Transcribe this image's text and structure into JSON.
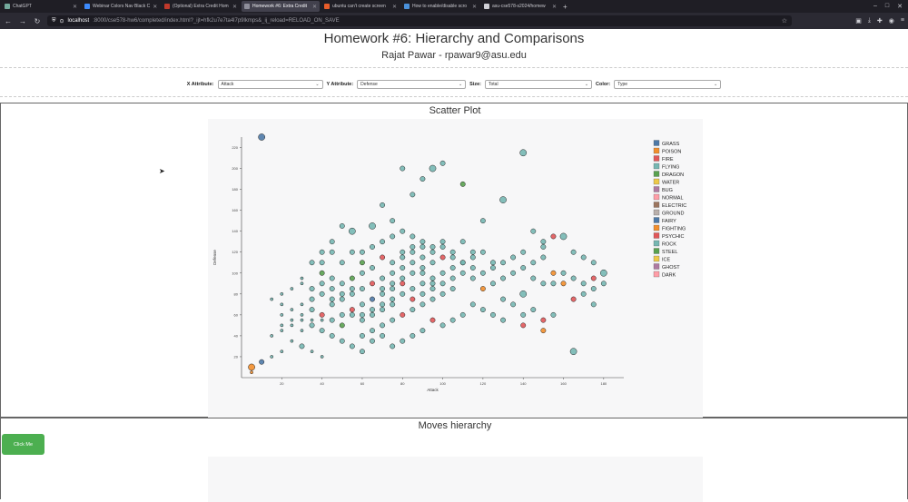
{
  "browser": {
    "tabs": [
      {
        "label": "ChatGPT",
        "color": "#74aa9c",
        "active": false
      },
      {
        "label": "Webinar Colors Nav Black C",
        "color": "#3d8bfd",
        "active": false
      },
      {
        "label": "(Optional) Extra Credit Hom",
        "color": "#c0392b",
        "active": false
      },
      {
        "label": "Homework #6: Extra Credit",
        "color": "#8e8e9a",
        "active": true
      },
      {
        "label": "ubuntu can't create screen",
        "color": "#e85d2a",
        "active": false
      },
      {
        "label": "How to enable/disable scro",
        "color": "#4a90d9",
        "active": false
      },
      {
        "label": "asu-cse578-s2024/homew",
        "color": "#d0d0d6",
        "active": false
      }
    ],
    "url_host": "localhost",
    "url_path": ":8000/cse578-hw6/completed/index.html?_ijt=hfk2u7e7ta4l7p9lkmps&_ij_reload=RELOAD_ON_SAVE"
  },
  "header": {
    "title": "Homework #6: Hierarchy and Comparisons",
    "subtitle": "Rajat Pawar - rpawar9@asu.edu"
  },
  "controls": {
    "x_label": "X Attribute:",
    "x_value": "Attack",
    "y_label": "Y Attribute:",
    "y_value": "Defense",
    "size_label": "Size:",
    "size_value": "Total",
    "color_label": "Color:",
    "color_value": "Type"
  },
  "scatter": {
    "title": "Scatter Plot"
  },
  "moves": {
    "title": "Moves hierarchy",
    "button_label": "Click Me"
  },
  "chart_data": {
    "type": "scatter",
    "xlabel": "Attack",
    "ylabel": "Defense",
    "xlim": [
      0,
      190
    ],
    "ylim": [
      0,
      230
    ],
    "xticks": [
      20,
      40,
      60,
      80,
      100,
      120,
      140,
      160,
      180
    ],
    "yticks": [
      20,
      40,
      60,
      80,
      100,
      120,
      140,
      160,
      180,
      200,
      220
    ],
    "legend_position": "right",
    "legend": [
      {
        "name": "GRASS",
        "color": "#4e79a7"
      },
      {
        "name": "POISON",
        "color": "#f28e2c"
      },
      {
        "name": "FIRE",
        "color": "#e15759"
      },
      {
        "name": "FLYING",
        "color": "#76b7b2"
      },
      {
        "name": "DRAGON",
        "color": "#59a14f"
      },
      {
        "name": "WATER",
        "color": "#edc949"
      },
      {
        "name": "BUG",
        "color": "#af7aa1"
      },
      {
        "name": "NORMAL",
        "color": "#ff9da7"
      },
      {
        "name": "ELECTRIC",
        "color": "#9c755f"
      },
      {
        "name": "GROUND",
        "color": "#bab0ab"
      },
      {
        "name": "FAIRY",
        "color": "#4e79a7"
      },
      {
        "name": "FIGHTING",
        "color": "#f28e2c"
      },
      {
        "name": "PSYCHIC",
        "color": "#e15759"
      },
      {
        "name": "ROCK",
        "color": "#76b7b2"
      },
      {
        "name": "STEEL",
        "color": "#59a14f"
      },
      {
        "name": "ICE",
        "color": "#edc949"
      },
      {
        "name": "GHOST",
        "color": "#af7aa1"
      },
      {
        "name": "DARK",
        "color": "#ff9da7"
      }
    ],
    "points": [
      [
        5,
        5,
        1,
        1
      ],
      [
        10,
        230,
        3,
        0
      ],
      [
        5,
        10,
        3,
        1
      ],
      [
        10,
        15,
        2,
        0
      ],
      [
        15,
        20,
        1,
        3
      ],
      [
        20,
        25,
        1,
        3
      ],
      [
        15,
        40,
        1,
        3
      ],
      [
        20,
        45,
        1,
        3
      ],
      [
        25,
        50,
        1,
        3
      ],
      [
        30,
        55,
        1,
        3
      ],
      [
        20,
        60,
        1,
        3
      ],
      [
        25,
        35,
        1,
        3
      ],
      [
        30,
        30,
        2,
        3
      ],
      [
        35,
        25,
        1,
        3
      ],
      [
        40,
        20,
        1,
        3
      ],
      [
        30,
        70,
        1,
        3
      ],
      [
        35,
        65,
        2,
        3
      ],
      [
        40,
        60,
        2,
        2
      ],
      [
        45,
        55,
        2,
        3
      ],
      [
        50,
        50,
        2,
        4
      ],
      [
        45,
        70,
        2,
        3
      ],
      [
        50,
        75,
        2,
        3
      ],
      [
        55,
        80,
        2,
        3
      ],
      [
        60,
        70,
        2,
        3
      ],
      [
        65,
        75,
        2,
        0
      ],
      [
        55,
        60,
        2,
        3
      ],
      [
        60,
        55,
        2,
        3
      ],
      [
        65,
        60,
        2,
        3
      ],
      [
        70,
        65,
        2,
        3
      ],
      [
        75,
        70,
        2,
        3
      ],
      [
        50,
        90,
        2,
        3
      ],
      [
        55,
        95,
        2,
        4
      ],
      [
        60,
        100,
        2,
        3
      ],
      [
        65,
        105,
        2,
        3
      ],
      [
        70,
        95,
        2,
        3
      ],
      [
        75,
        100,
        2,
        3
      ],
      [
        80,
        105,
        2,
        3
      ],
      [
        85,
        110,
        2,
        3
      ],
      [
        90,
        100,
        2,
        3
      ],
      [
        95,
        95,
        2,
        3
      ],
      [
        60,
        40,
        2,
        3
      ],
      [
        65,
        45,
        2,
        3
      ],
      [
        70,
        50,
        2,
        3
      ],
      [
        75,
        55,
        2,
        3
      ],
      [
        80,
        60,
        2,
        2
      ],
      [
        85,
        65,
        2,
        3
      ],
      [
        90,
        70,
        2,
        3
      ],
      [
        95,
        75,
        2,
        3
      ],
      [
        100,
        80,
        2,
        3
      ],
      [
        105,
        85,
        2,
        3
      ],
      [
        70,
        80,
        2,
        3
      ],
      [
        75,
        85,
        2,
        3
      ],
      [
        80,
        90,
        2,
        2
      ],
      [
        85,
        85,
        2,
        3
      ],
      [
        90,
        80,
        2,
        3
      ],
      [
        95,
        85,
        2,
        3
      ],
      [
        100,
        90,
        2,
        3
      ],
      [
        105,
        95,
        2,
        3
      ],
      [
        110,
        100,
        2,
        3
      ],
      [
        115,
        105,
        2,
        3
      ],
      [
        80,
        120,
        2,
        3
      ],
      [
        85,
        125,
        2,
        3
      ],
      [
        90,
        115,
        2,
        3
      ],
      [
        95,
        120,
        2,
        3
      ],
      [
        100,
        125,
        2,
        3
      ],
      [
        105,
        115,
        2,
        3
      ],
      [
        110,
        110,
        2,
        3
      ],
      [
        115,
        115,
        2,
        3
      ],
      [
        120,
        120,
        2,
        3
      ],
      [
        125,
        110,
        2,
        3
      ],
      [
        40,
        100,
        2,
        4
      ],
      [
        45,
        95,
        2,
        3
      ],
      [
        35,
        110,
        2,
        3
      ],
      [
        40,
        120,
        2,
        3
      ],
      [
        45,
        130,
        2,
        3
      ],
      [
        50,
        145,
        2,
        3
      ],
      [
        55,
        140,
        3,
        3
      ],
      [
        65,
        145,
        3,
        3
      ],
      [
        70,
        165,
        2,
        3
      ],
      [
        75,
        150,
        2,
        3
      ],
      [
        80,
        200,
        2,
        3
      ],
      [
        85,
        175,
        2,
        3
      ],
      [
        90,
        190,
        2,
        3
      ],
      [
        95,
        200,
        3,
        3
      ],
      [
        100,
        205,
        2,
        3
      ],
      [
        110,
        185,
        2,
        4
      ],
      [
        120,
        150,
        2,
        3
      ],
      [
        130,
        170,
        3,
        3
      ],
      [
        140,
        215,
        3,
        3
      ],
      [
        150,
        125,
        2,
        3
      ],
      [
        160,
        135,
        3,
        3
      ],
      [
        165,
        120,
        2,
        3
      ],
      [
        170,
        115,
        2,
        3
      ],
      [
        175,
        110,
        2,
        3
      ],
      [
        180,
        100,
        3,
        3
      ],
      [
        155,
        100,
        2,
        1
      ],
      [
        160,
        90,
        2,
        1
      ],
      [
        165,
        75,
        2,
        2
      ],
      [
        170,
        80,
        2,
        3
      ],
      [
        175,
        85,
        2,
        3
      ],
      [
        120,
        85,
        2,
        1
      ],
      [
        125,
        90,
        2,
        3
      ],
      [
        130,
        95,
        2,
        3
      ],
      [
        135,
        100,
        2,
        3
      ],
      [
        140,
        105,
        2,
        3
      ],
      [
        145,
        95,
        2,
        3
      ],
      [
        150,
        90,
        2,
        3
      ],
      [
        130,
        75,
        2,
        3
      ],
      [
        135,
        70,
        2,
        3
      ],
      [
        140,
        80,
        3,
        3
      ],
      [
        140,
        60,
        2,
        3
      ],
      [
        145,
        65,
        2,
        3
      ],
      [
        150,
        55,
        2,
        2
      ],
      [
        155,
        60,
        2,
        3
      ],
      [
        150,
        45,
        2,
        1
      ],
      [
        140,
        50,
        2,
        2
      ],
      [
        130,
        55,
        2,
        3
      ],
      [
        125,
        60,
        2,
        3
      ],
      [
        120,
        65,
        2,
        3
      ],
      [
        115,
        70,
        2,
        3
      ],
      [
        110,
        60,
        2,
        3
      ],
      [
        105,
        55,
        2,
        3
      ],
      [
        100,
        50,
        2,
        3
      ],
      [
        95,
        55,
        2,
        2
      ],
      [
        90,
        45,
        2,
        3
      ],
      [
        85,
        40,
        2,
        3
      ],
      [
        80,
        35,
        2,
        3
      ],
      [
        75,
        30,
        2,
        3
      ],
      [
        70,
        40,
        2,
        3
      ],
      [
        65,
        35,
        2,
        3
      ],
      [
        60,
        25,
        2,
        3
      ],
      [
        55,
        30,
        2,
        3
      ],
      [
        50,
        35,
        2,
        3
      ],
      [
        45,
        40,
        2,
        3
      ],
      [
        40,
        45,
        2,
        3
      ],
      [
        35,
        50,
        2,
        3
      ],
      [
        30,
        45,
        1,
        3
      ],
      [
        25,
        55,
        1,
        3
      ],
      [
        20,
        50,
        1,
        3
      ],
      [
        50,
        60,
        2,
        3
      ],
      [
        55,
        65,
        2,
        2
      ],
      [
        60,
        60,
        2,
        3
      ],
      [
        65,
        65,
        2,
        3
      ],
      [
        70,
        70,
        2,
        3
      ],
      [
        75,
        75,
        2,
        3
      ],
      [
        80,
        80,
        2,
        3
      ],
      [
        85,
        75,
        2,
        2
      ],
      [
        90,
        90,
        2,
        3
      ],
      [
        95,
        90,
        2,
        3
      ],
      [
        100,
        100,
        2,
        3
      ],
      [
        105,
        105,
        2,
        3
      ],
      [
        110,
        110,
        2,
        3
      ],
      [
        115,
        120,
        2,
        3
      ],
      [
        100,
        115,
        2,
        2
      ],
      [
        95,
        110,
        2,
        3
      ],
      [
        90,
        105,
        2,
        3
      ],
      [
        85,
        100,
        2,
        3
      ],
      [
        80,
        95,
        2,
        3
      ],
      [
        75,
        90,
        2,
        3
      ],
      [
        70,
        85,
        2,
        3
      ],
      [
        65,
        90,
        2,
        2
      ],
      [
        60,
        85,
        2,
        3
      ],
      [
        55,
        85,
        2,
        3
      ],
      [
        50,
        80,
        2,
        3
      ],
      [
        45,
        75,
        2,
        3
      ],
      [
        40,
        80,
        2,
        3
      ],
      [
        35,
        75,
        2,
        3
      ],
      [
        35,
        85,
        2,
        3
      ],
      [
        40,
        90,
        2,
        3
      ],
      [
        45,
        85,
        2,
        3
      ],
      [
        60,
        120,
        2,
        3
      ],
      [
        65,
        125,
        2,
        3
      ],
      [
        70,
        130,
        2,
        3
      ],
      [
        75,
        135,
        2,
        3
      ],
      [
        80,
        140,
        2,
        3
      ],
      [
        85,
        135,
        2,
        3
      ],
      [
        90,
        130,
        2,
        3
      ],
      [
        95,
        125,
        2,
        3
      ],
      [
        100,
        130,
        2,
        3
      ],
      [
        105,
        120,
        2,
        3
      ],
      [
        70,
        115,
        2,
        2
      ],
      [
        75,
        110,
        2,
        3
      ],
      [
        80,
        115,
        2,
        3
      ],
      [
        85,
        120,
        2,
        3
      ],
      [
        90,
        125,
        2,
        3
      ],
      [
        60,
        110,
        2,
        4
      ],
      [
        55,
        120,
        2,
        3
      ],
      [
        50,
        110,
        2,
        3
      ],
      [
        45,
        120,
        2,
        3
      ],
      [
        40,
        110,
        2,
        3
      ],
      [
        110,
        130,
        2,
        3
      ],
      [
        115,
        95,
        2,
        3
      ],
      [
        120,
        100,
        2,
        3
      ],
      [
        125,
        105,
        2,
        3
      ],
      [
        130,
        110,
        2,
        3
      ],
      [
        135,
        115,
        2,
        3
      ],
      [
        140,
        120,
        2,
        3
      ],
      [
        145,
        110,
        2,
        3
      ],
      [
        150,
        115,
        2,
        3
      ],
      [
        155,
        90,
        2,
        3
      ],
      [
        160,
        100,
        2,
        3
      ],
      [
        165,
        95,
        2,
        3
      ],
      [
        170,
        90,
        2,
        3
      ],
      [
        175,
        95,
        2,
        2
      ],
      [
        180,
        90,
        2,
        3
      ],
      [
        165,
        25,
        3,
        3
      ],
      [
        175,
        70,
        2,
        3
      ],
      [
        145,
        140,
        2,
        3
      ],
      [
        150,
        130,
        2,
        3
      ],
      [
        155,
        135,
        2,
        2
      ],
      [
        30,
        95,
        1,
        3
      ],
      [
        30,
        90,
        1,
        3
      ],
      [
        25,
        85,
        1,
        3
      ],
      [
        20,
        80,
        1,
        3
      ],
      [
        15,
        75,
        1,
        3
      ],
      [
        20,
        70,
        1,
        3
      ],
      [
        25,
        65,
        1,
        3
      ],
      [
        30,
        60,
        1,
        3
      ],
      [
        35,
        55,
        1,
        3
      ],
      [
        40,
        55,
        1,
        3
      ]
    ]
  }
}
